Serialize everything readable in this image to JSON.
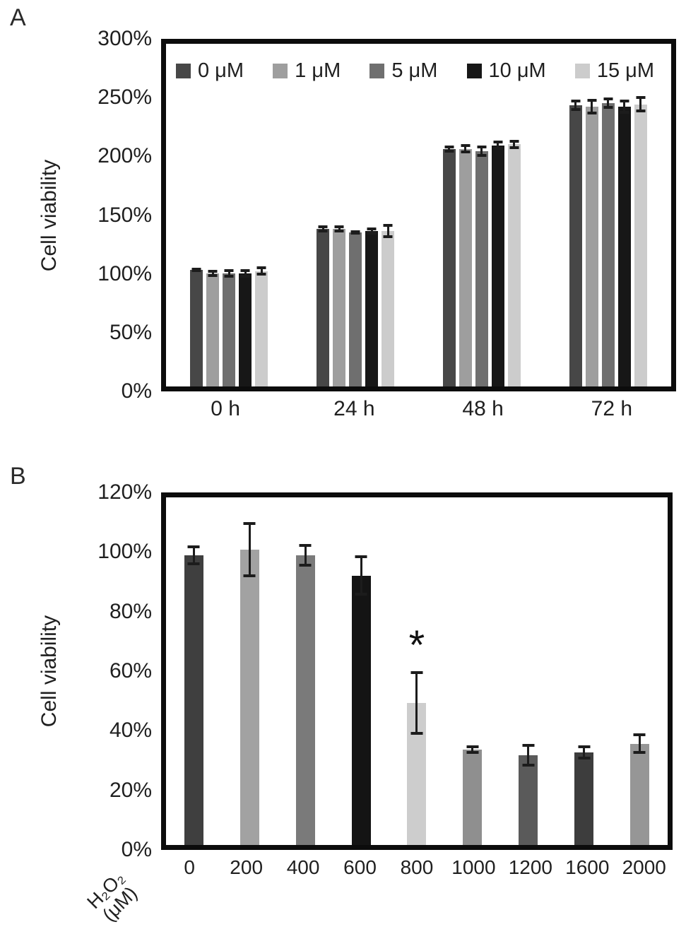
{
  "figure": {
    "background": "#ffffff",
    "panel_a": {
      "label": "A"
    },
    "panel_b": {
      "label": "B"
    },
    "axis_color": "#0c0c0c",
    "error_bar_color": "#1c1c1c"
  },
  "chart_data": [
    {
      "panel": "A",
      "type": "bar",
      "title": "",
      "ylabel": "Cell viability",
      "xlabel": "",
      "ylim": [
        0,
        300
      ],
      "yticks": [
        "0%",
        "50%",
        "100%",
        "150%",
        "200%",
        "250%",
        "300%"
      ],
      "grid": false,
      "legend_position": "top-inside",
      "categories": [
        "0 h",
        "24 h",
        "48 h",
        "72 h"
      ],
      "series": [
        {
          "name": "0 μM",
          "color": "#474747",
          "values": [
            102,
            138,
            208,
            246
          ],
          "errors": [
            2,
            3,
            3,
            5
          ]
        },
        {
          "name": "1 μM",
          "color": "#9e9e9e",
          "values": [
            99,
            138,
            208,
            245
          ],
          "errors": [
            3,
            3,
            4,
            7
          ]
        },
        {
          "name": "5 μM",
          "color": "#6f6f6f",
          "values": [
            99,
            135,
            206,
            248
          ],
          "errors": [
            4,
            2,
            5,
            5
          ]
        },
        {
          "name": "10 μM",
          "color": "#171717",
          "values": [
            99,
            136,
            211,
            245
          ],
          "errors": [
            4,
            3,
            4,
            6
          ]
        },
        {
          "name": "15 μM",
          "color": "#cccccc",
          "values": [
            101,
            136,
            212,
            247
          ],
          "errors": [
            4,
            6,
            4,
            7
          ]
        }
      ]
    },
    {
      "panel": "B",
      "type": "bar",
      "title": "",
      "ylabel": "Cell viability",
      "xlabel": "H₂O₂ (μM)",
      "xlabel_lines": [
        "H₂O₂",
        "(μM)"
      ],
      "ylim": [
        0,
        120
      ],
      "yticks": [
        "0%",
        "20%",
        "40%",
        "60%",
        "80%",
        "100%",
        "120%"
      ],
      "grid": false,
      "legend_position": "none",
      "categories": [
        "0",
        "200",
        "400",
        "600",
        "800",
        "1000",
        "1200",
        "1600",
        "2000"
      ],
      "values": [
        100,
        102,
        100,
        93,
        49,
        33,
        31,
        32,
        35
      ],
      "errors": [
        3.5,
        9.5,
        4,
        7,
        11,
        1.5,
        4,
        2.5,
        3.5
      ],
      "colors": [
        "#3f3f3f",
        "#a2a2a2",
        "#7a7a7a",
        "#141414",
        "#cdcdcd",
        "#8f8f8f",
        "#5a5a5a",
        "#3d3d3d",
        "#969696"
      ],
      "annotations": [
        {
          "text": "*",
          "category": "800"
        }
      ]
    }
  ]
}
